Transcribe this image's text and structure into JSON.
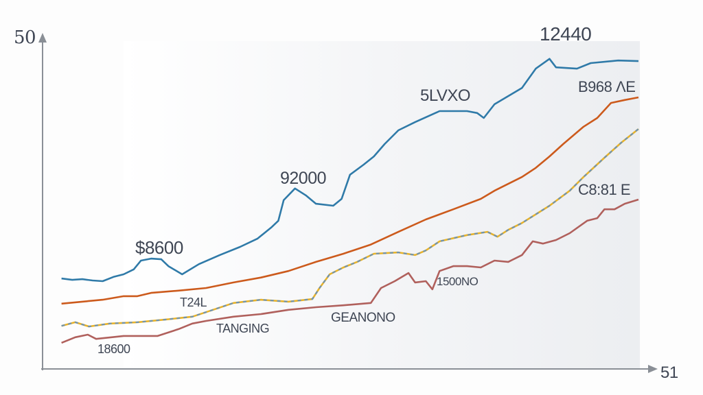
{
  "chart_data": {
    "type": "line",
    "title": "",
    "xlabel": "",
    "ylabel": "",
    "xlim": [
      0,
      100
    ],
    "ylim": [
      0,
      100
    ],
    "grid": false,
    "y_axis_label": "50",
    "x_axis_end_label": "51",
    "colors": {
      "blue": "#2f7aa8",
      "orange": "#cc5a1c",
      "yellow": "#e8b32a",
      "yellow_dash": "#6f93b0",
      "red": "#b0605c"
    },
    "series": [
      {
        "name": "blue",
        "x": [
          3.4,
          5.2,
          6.9,
          8.6,
          10.3,
          12.1,
          13.8,
          15.5,
          16.7,
          18.4,
          20.1,
          21.3,
          23.6,
          26.4,
          29.9,
          33.3,
          36.2,
          38.5,
          39.7,
          40.6,
          42.5,
          44.3,
          46.0,
          48.9,
          50.3,
          51.7,
          54.0,
          55.7,
          57.5,
          59.8,
          62.6,
          66.7,
          71.3,
          73.0,
          74.1,
          75.9,
          78.2,
          80.5,
          82.8,
          85.1,
          86.2,
          89.7,
          92.0,
          96.6,
          100
        ],
        "y": [
          27.7,
          27.3,
          27.5,
          27.1,
          26.9,
          28.2,
          29.0,
          30.5,
          33.2,
          33.8,
          33.6,
          31.5,
          29.0,
          32.1,
          34.9,
          37.4,
          39.9,
          43.3,
          45.4,
          51.7,
          55.3,
          53.2,
          50.6,
          50.0,
          52.1,
          59.5,
          62.6,
          65.1,
          68.9,
          73.1,
          75.6,
          79.0,
          79.0,
          78.4,
          76.9,
          81.1,
          83.6,
          86.1,
          92.0,
          95.0,
          92.4,
          92.0,
          93.7,
          94.5,
          94.3
        ]
      },
      {
        "name": "orange",
        "x": [
          3.4,
          6.9,
          10.3,
          13.8,
          16.1,
          18.4,
          23.0,
          27.6,
          32.2,
          36.8,
          41.4,
          46.0,
          50.6,
          55.2,
          59.8,
          64.4,
          69.0,
          73.6,
          75.9,
          80.5,
          82.8,
          85.1,
          87.4,
          90.8,
          93.1,
          95.4,
          97.7,
          100
        ],
        "y": [
          20.0,
          20.6,
          21.2,
          22.3,
          22.3,
          23.3,
          24.0,
          24.8,
          26.5,
          28.0,
          30.0,
          32.8,
          35.3,
          38.1,
          42.0,
          45.8,
          48.9,
          52.1,
          54.6,
          58.8,
          61.6,
          65.1,
          68.9,
          74.2,
          76.9,
          81.5,
          82.4,
          83.2
        ]
      },
      {
        "name": "yellow",
        "x": [
          3.4,
          5.7,
          8.0,
          11.5,
          16.1,
          20.7,
          25.3,
          27.6,
          32.2,
          36.8,
          41.4,
          45.4,
          46.6,
          48.3,
          50.6,
          52.9,
          55.7,
          59.8,
          62.6,
          64.4,
          66.7,
          71.3,
          74.7,
          76.4,
          78.2,
          80.5,
          85.1,
          88.5,
          90.8,
          94.3,
          97.1,
          100
        ],
        "y": [
          13.2,
          14.3,
          13.0,
          13.9,
          14.3,
          15.1,
          16.0,
          17.4,
          20.2,
          21.2,
          20.6,
          21.4,
          24.8,
          29.0,
          31.1,
          32.8,
          35.3,
          35.7,
          34.9,
          36.3,
          39.1,
          41.0,
          42.0,
          40.5,
          42.6,
          44.7,
          50.0,
          54.6,
          58.8,
          64.7,
          69.3,
          73.5
        ]
      },
      {
        "name": "red",
        "x": [
          3.4,
          5.7,
          7.8,
          9.2,
          13.8,
          19.5,
          23.0,
          25.3,
          27.6,
          32.2,
          36.8,
          41.4,
          46.0,
          50.6,
          55.2,
          56.9,
          59.2,
          61.5,
          62.6,
          64.4,
          65.5,
          66.7,
          69.0,
          71.3,
          73.6,
          75.9,
          78.2,
          80.5,
          82.3,
          84.0,
          86.2,
          88.5,
          91.4,
          93.1,
          94.3,
          96.0,
          97.7,
          100
        ],
        "y": [
          8.0,
          9.7,
          10.5,
          9.2,
          10.1,
          10.1,
          12.2,
          13.9,
          14.7,
          16.0,
          16.8,
          18.1,
          18.9,
          19.5,
          20.2,
          24.8,
          26.9,
          29.4,
          26.5,
          26.9,
          24.4,
          30.0,
          31.5,
          31.5,
          31.1,
          33.2,
          32.8,
          34.9,
          39.1,
          38.4,
          39.5,
          41.6,
          45.4,
          46.2,
          48.9,
          48.9,
          50.6,
          51.9
        ]
      }
    ],
    "annotations": {
      "peak": "12440",
      "blue_mid": "5LVXO",
      "orange_end": "B968 ΛE",
      "blue_low": "92000",
      "blue_start": "$8600",
      "yellow_end": "C8:81  E",
      "red_mid": "1500NO",
      "red_low": "GEANONO",
      "lower_mid": "TANGING",
      "yellow_start": "T24L",
      "red_start": "18600"
    }
  }
}
